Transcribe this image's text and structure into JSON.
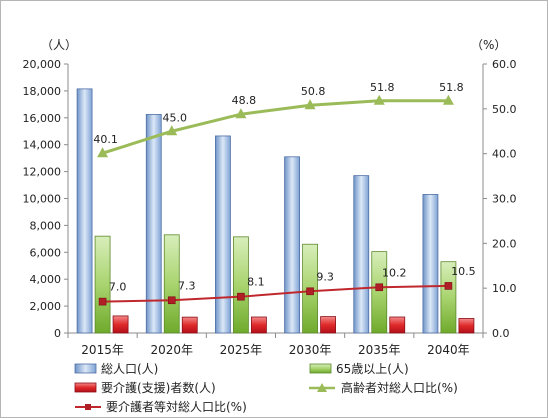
{
  "chart_data": {
    "type": "bar",
    "categories": [
      "2015年",
      "2020年",
      "2025年",
      "2030年",
      "2035年",
      "2040年"
    ],
    "y_left": {
      "unit": "（人）",
      "ylim": [
        0,
        20000
      ],
      "ticks": [
        "0",
        "2,000",
        "4,000",
        "6,000",
        "8,000",
        "10,000",
        "12,000",
        "14,000",
        "16,000",
        "18,000",
        "20,000"
      ]
    },
    "y_right": {
      "unit": "（%）",
      "ylim": [
        0,
        60
      ],
      "ticks": [
        "0.0",
        "10.0",
        "20.0",
        "30.0",
        "40.0",
        "50.0",
        "60.0"
      ]
    },
    "grid": false,
    "legend_position": "bottom",
    "series": [
      {
        "name": "総人口(人)",
        "kind": "bar",
        "axis": "left",
        "color": "#8fb4e3",
        "values": [
          18150,
          16250,
          14650,
          13100,
          11700,
          10300
        ]
      },
      {
        "name": "65歳以上(人)",
        "kind": "bar",
        "axis": "left",
        "color": "#9bcf63",
        "values": [
          7200,
          7300,
          7150,
          6600,
          6050,
          5300
        ]
      },
      {
        "name": "要介護(支援)者数(人)",
        "kind": "bar",
        "axis": "left",
        "color": "#d9202c",
        "values": [
          1270,
          1180,
          1190,
          1220,
          1190,
          1080
        ]
      },
      {
        "name": "高齢者対総人口比(%)",
        "kind": "line",
        "axis": "right",
        "color": "#9bbb59",
        "values": [
          40.1,
          45.0,
          48.8,
          50.8,
          51.8,
          51.8
        ],
        "labels": [
          "40.1",
          "45.0",
          "48.8",
          "50.8",
          "51.8",
          "51.8"
        ]
      },
      {
        "name": "要介護者等対総人口比(%)",
        "kind": "line",
        "axis": "right",
        "color": "#c0282d",
        "values": [
          7.0,
          7.3,
          8.1,
          9.3,
          10.2,
          10.5
        ],
        "labels": [
          "7.0",
          "7.3",
          "8.1",
          "9.3",
          "10.2",
          "10.5"
        ]
      }
    ]
  }
}
